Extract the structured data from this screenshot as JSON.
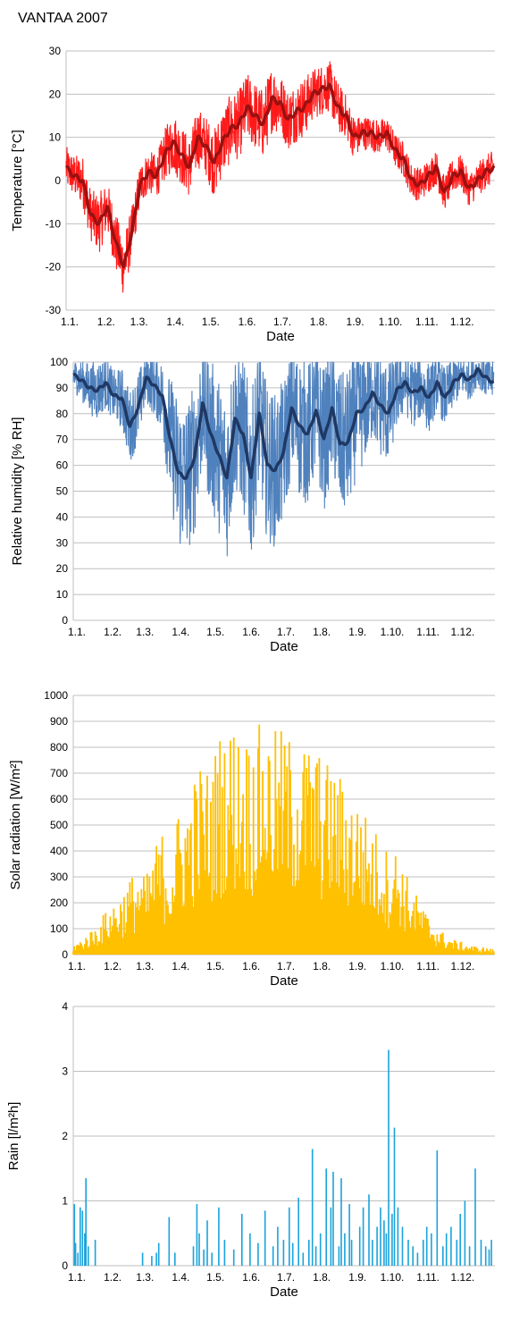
{
  "title": "VANTAA 2007",
  "colors": {
    "temperature_raw": "#ff1a1a",
    "temperature_mean": "#9b1010",
    "humidity_raw": "#4f81bd",
    "humidity_mean": "#1f3864",
    "solar": "#ffc000",
    "rain": "#1aa3dc",
    "grid": "#bfbfbf"
  },
  "chart_data": [
    {
      "type": "line",
      "title": "VANTAA 2007",
      "xlabel": "Date",
      "ylabel": "Temperature [°C]",
      "ylim": [
        -30,
        30
      ],
      "yticks": [
        -30,
        -20,
        -10,
        0,
        10,
        20,
        30
      ],
      "xticks": [
        "1.1.",
        "1.2.",
        "1.3.",
        "1.4.",
        "1.5.",
        "1.6.",
        "1.7.",
        "1.8.",
        "1.9.",
        "1.10.",
        "1.11.",
        "1.12."
      ],
      "grid": true,
      "series": [
        {
          "style": "hourly",
          "color": "#ff1a1a",
          "x": [
            "1.1.",
            "8.1.",
            "15.1.",
            "22.1.",
            "29.1.",
            "5.2.",
            "12.2.",
            "19.2.",
            "26.2.",
            "5.3.",
            "12.3.",
            "19.3.",
            "26.3.",
            "2.4.",
            "9.4.",
            "16.4.",
            "23.4.",
            "30.4.",
            "7.5.",
            "14.5.",
            "21.5.",
            "28.5.",
            "4.6.",
            "11.6.",
            "18.6.",
            "25.6.",
            "2.7.",
            "9.7.",
            "16.7.",
            "23.7.",
            "30.7.",
            "6.8.",
            "13.8.",
            "20.8.",
            "27.8.",
            "3.9.",
            "10.9.",
            "17.9.",
            "24.9.",
            "1.10.",
            "8.10.",
            "15.10.",
            "22.10.",
            "29.10.",
            "5.11.",
            "12.11.",
            "19.11.",
            "26.11.",
            "3.12.",
            "10.12.",
            "17.12.",
            "24.12.",
            "31.12."
          ],
          "y": [
            3,
            1,
            0,
            -8,
            -10,
            -6,
            -14,
            -20,
            -12,
            -1,
            2,
            1,
            6,
            9,
            6,
            3,
            10,
            8,
            4,
            9,
            12,
            13,
            17,
            15,
            13,
            19,
            18,
            14,
            16,
            17,
            20,
            21,
            22,
            17,
            15,
            10,
            11,
            11,
            10,
            11,
            7,
            5,
            0,
            -1,
            1,
            3,
            -3,
            1,
            2,
            -2,
            0,
            2,
            3
          ],
          "amplitude": [
            5,
            5,
            6,
            6,
            7,
            6,
            7,
            7,
            6,
            5,
            5,
            5,
            6,
            7,
            7,
            7,
            7,
            7,
            8,
            8,
            8,
            8,
            8,
            8,
            8,
            8,
            7,
            7,
            7,
            7,
            6,
            6,
            6,
            6,
            5,
            5,
            4,
            4,
            4,
            4,
            4,
            4,
            4,
            4,
            4,
            4,
            4,
            4,
            4,
            4,
            4,
            4,
            4
          ]
        },
        {
          "style": "mean",
          "color": "#9b1010",
          "x": [
            "1.1.",
            "8.1.",
            "15.1.",
            "22.1.",
            "29.1.",
            "5.2.",
            "12.2.",
            "19.2.",
            "26.2.",
            "5.3.",
            "12.3.",
            "19.3.",
            "26.3.",
            "2.4.",
            "9.4.",
            "16.4.",
            "23.4.",
            "30.4.",
            "7.5.",
            "14.5.",
            "21.5.",
            "28.5.",
            "4.6.",
            "11.6.",
            "18.6.",
            "25.6.",
            "2.7.",
            "9.7.",
            "16.7.",
            "23.7.",
            "30.7.",
            "6.8.",
            "13.8.",
            "20.8.",
            "27.8.",
            "3.9.",
            "10.9.",
            "17.9.",
            "24.9.",
            "1.10.",
            "8.10.",
            "15.10.",
            "22.10.",
            "29.10.",
            "5.11.",
            "12.11.",
            "19.11.",
            "26.11.",
            "3.12.",
            "10.12.",
            "17.12.",
            "24.12.",
            "31.12."
          ],
          "y": [
            3,
            1,
            0,
            -8,
            -10,
            -6,
            -14,
            -20,
            -12,
            -1,
            2,
            1,
            6,
            9,
            6,
            3,
            10,
            8,
            4,
            9,
            12,
            13,
            17,
            15,
            13,
            19,
            18,
            14,
            16,
            17,
            20,
            21,
            22,
            17,
            15,
            10,
            11,
            11,
            10,
            11,
            7,
            5,
            0,
            -1,
            1,
            3,
            -3,
            1,
            2,
            -2,
            0,
            2,
            3
          ]
        }
      ]
    },
    {
      "type": "line",
      "xlabel": "Date",
      "ylabel": "Relative humidity  [% RH]",
      "ylim": [
        0,
        100
      ],
      "yticks": [
        0,
        10,
        20,
        30,
        40,
        50,
        60,
        70,
        80,
        90,
        100
      ],
      "xticks": [
        "1.1.",
        "1.2.",
        "1.3.",
        "1.4.",
        "1.5.",
        "1.6.",
        "1.7.",
        "1.8.",
        "1.9.",
        "1.10.",
        "1.11.",
        "1.12."
      ],
      "grid": true,
      "series": [
        {
          "style": "hourly",
          "color": "#4f81bd",
          "x": [
            "1.1.",
            "8.1.",
            "15.1.",
            "22.1.",
            "29.1.",
            "5.2.",
            "12.2.",
            "19.2.",
            "26.2.",
            "5.3.",
            "12.3.",
            "19.3.",
            "26.3.",
            "2.4.",
            "9.4.",
            "16.4.",
            "23.4.",
            "30.4.",
            "7.5.",
            "14.5.",
            "21.5.",
            "28.5.",
            "4.6.",
            "11.6.",
            "18.6.",
            "25.6.",
            "2.7.",
            "9.7.",
            "16.7.",
            "23.7.",
            "30.7.",
            "6.8.",
            "13.8.",
            "20.8.",
            "27.8.",
            "3.9.",
            "10.9.",
            "17.9.",
            "24.9.",
            "1.10.",
            "8.10.",
            "15.10.",
            "22.10.",
            "29.10.",
            "5.11.",
            "12.11.",
            "19.11.",
            "26.11.",
            "3.12.",
            "10.12.",
            "17.12.",
            "24.12.",
            "31.12."
          ],
          "y": [
            95,
            93,
            90,
            89,
            92,
            87,
            86,
            75,
            82,
            94,
            91,
            87,
            70,
            57,
            55,
            63,
            84,
            72,
            64,
            55,
            78,
            72,
            55,
            80,
            60,
            58,
            65,
            82,
            75,
            72,
            81,
            70,
            82,
            68,
            69,
            80,
            82,
            88,
            83,
            80,
            89,
            92,
            88,
            90,
            86,
            92,
            86,
            92,
            95,
            93,
            97,
            94,
            92
          ],
          "amplitude": [
            6,
            8,
            10,
            12,
            10,
            10,
            12,
            14,
            14,
            10,
            12,
            14,
            25,
            30,
            30,
            30,
            25,
            30,
            30,
            32,
            28,
            30,
            32,
            28,
            30,
            30,
            28,
            25,
            28,
            28,
            25,
            28,
            25,
            28,
            28,
            25,
            22,
            18,
            20,
            20,
            15,
            12,
            14,
            12,
            14,
            10,
            12,
            10,
            8,
            8,
            6,
            8,
            8
          ]
        },
        {
          "style": "mean",
          "color": "#1f3864",
          "x": [
            "1.1.",
            "8.1.",
            "15.1.",
            "22.1.",
            "29.1.",
            "5.2.",
            "12.2.",
            "19.2.",
            "26.2.",
            "5.3.",
            "12.3.",
            "19.3.",
            "26.3.",
            "2.4.",
            "9.4.",
            "16.4.",
            "23.4.",
            "30.4.",
            "7.5.",
            "14.5.",
            "21.5.",
            "28.5.",
            "4.6.",
            "11.6.",
            "18.6.",
            "25.6.",
            "2.7.",
            "9.7.",
            "16.7.",
            "23.7.",
            "30.7.",
            "6.8.",
            "13.8.",
            "20.8.",
            "27.8.",
            "3.9.",
            "10.9.",
            "17.9.",
            "24.9.",
            "1.10.",
            "8.10.",
            "15.10.",
            "22.10.",
            "29.10.",
            "5.11.",
            "12.11.",
            "19.11.",
            "26.11.",
            "3.12.",
            "10.12.",
            "17.12.",
            "24.12.",
            "31.12."
          ],
          "y": [
            95,
            93,
            90,
            89,
            92,
            87,
            86,
            75,
            82,
            94,
            91,
            87,
            70,
            57,
            55,
            63,
            84,
            72,
            64,
            55,
            78,
            72,
            55,
            80,
            60,
            58,
            65,
            82,
            75,
            72,
            81,
            70,
            82,
            68,
            69,
            80,
            82,
            88,
            83,
            80,
            89,
            92,
            88,
            90,
            86,
            92,
            86,
            92,
            95,
            93,
            97,
            94,
            92
          ]
        }
      ]
    },
    {
      "type": "area",
      "xlabel": "Date",
      "ylabel": "Solar radiation [W/m²]",
      "ylim": [
        0,
        1000
      ],
      "yticks": [
        0,
        100,
        200,
        300,
        400,
        500,
        600,
        700,
        800,
        900,
        1000
      ],
      "xticks": [
        "1.1.",
        "1.2.",
        "1.3.",
        "1.4.",
        "1.5.",
        "1.6.",
        "1.7.",
        "1.8.",
        "1.9.",
        "1.10.",
        "1.11.",
        "1.12."
      ],
      "grid": true,
      "series": [
        {
          "style": "daily_peak",
          "color": "#ffc000",
          "x": [
            "1.1.",
            "8.1.",
            "15.1.",
            "22.1.",
            "29.1.",
            "5.2.",
            "12.2.",
            "19.2.",
            "26.2.",
            "5.3.",
            "12.3.",
            "19.3.",
            "26.3.",
            "2.4.",
            "9.4.",
            "16.4.",
            "23.4.",
            "30.4.",
            "7.5.",
            "14.5.",
            "21.5.",
            "28.5.",
            "4.6.",
            "11.6.",
            "18.6.",
            "25.6.",
            "2.7.",
            "9.7.",
            "16.7.",
            "23.7.",
            "30.7.",
            "6.8.",
            "13.8.",
            "20.8.",
            "27.8.",
            "3.9.",
            "10.9.",
            "17.9.",
            "24.9.",
            "1.10.",
            "8.10.",
            "15.10.",
            "22.10.",
            "29.10.",
            "5.11.",
            "12.11.",
            "19.11.",
            "26.11.",
            "3.12.",
            "10.12.",
            "17.12.",
            "24.12.",
            "31.12."
          ],
          "y": [
            40,
            60,
            90,
            120,
            170,
            210,
            240,
            300,
            330,
            300,
            420,
            480,
            380,
            560,
            600,
            700,
            750,
            720,
            860,
            880,
            900,
            850,
            860,
            890,
            880,
            870,
            880,
            840,
            820,
            830,
            810,
            760,
            730,
            700,
            640,
            620,
            560,
            500,
            460,
            400,
            420,
            330,
            260,
            200,
            150,
            110,
            80,
            60,
            50,
            40,
            30,
            30,
            20
          ]
        }
      ]
    },
    {
      "type": "bar",
      "xlabel": "Date",
      "ylabel": "Rain  [l/m²h]",
      "ylim": [
        0,
        4
      ],
      "yticks": [
        0,
        1,
        2,
        3,
        4
      ],
      "xticks": [
        "1.1.",
        "1.2.",
        "1.3.",
        "1.4.",
        "1.5.",
        "1.6.",
        "1.7.",
        "1.8.",
        "1.9.",
        "1.10.",
        "1.11.",
        "1.12."
      ],
      "grid": true,
      "series": [
        {
          "style": "hourly",
          "color": "#1aa3dc",
          "x": [
            "2.1.",
            "3.1.",
            "5.1.",
            "7.1.",
            "9.1.",
            "11.1.",
            "12.1.",
            "14.1.",
            "20.1.",
            "2.3.",
            "10.3.",
            "14.3.",
            "16.3.",
            "25.3.",
            "30.3.",
            "15.4.",
            "18.4.",
            "20.4.",
            "24.4.",
            "27.4.",
            "1.5.",
            "7.5.",
            "12.5.",
            "20.5.",
            "27.5.",
            "3.6.",
            "10.6.",
            "16.6.",
            "23.6.",
            "27.6.",
            "2.7.",
            "7.7.",
            "10.7.",
            "15.7.",
            "19.7.",
            "24.7.",
            "27.7.",
            "30.7.",
            "3.8.",
            "8.8.",
            "12.8.",
            "14.8.",
            "19.8.",
            "21.8.",
            "24.8.",
            "28.8.",
            "30.8.",
            "6.9.",
            "9.9.",
            "14.9.",
            "17.9.",
            "21.9.",
            "24.9.",
            "27.9.",
            "29.9.",
            "1.10.",
            "4.10.",
            "6.10.",
            "9.10.",
            "13.10.",
            "18.10.",
            "22.10.",
            "26.10.",
            "31.10.",
            "3.11.",
            "7.11.",
            "12.11.",
            "17.11.",
            "20.11.",
            "24.11.",
            "29.11.",
            "2.12.",
            "6.12.",
            "10.12.",
            "15.12.",
            "20.12.",
            "24.12.",
            "27.12.",
            "29.12."
          ],
          "y": [
            0.95,
            0.35,
            0.2,
            0.9,
            0.85,
            0.5,
            1.35,
            0.3,
            0.4,
            0.2,
            0.15,
            0.2,
            0.35,
            0.75,
            0.2,
            0.3,
            0.95,
            0.5,
            0.25,
            0.7,
            0.2,
            0.9,
            0.4,
            0.25,
            0.8,
            0.5,
            0.35,
            0.85,
            0.3,
            0.6,
            0.4,
            0.9,
            0.35,
            1.05,
            0.2,
            0.4,
            1.8,
            0.3,
            0.5,
            1.5,
            0.9,
            1.45,
            0.3,
            1.35,
            0.5,
            0.95,
            0.4,
            0.6,
            0.9,
            1.1,
            0.4,
            0.6,
            0.9,
            0.7,
            0.5,
            3.33,
            0.8,
            2.13,
            0.9,
            0.6,
            0.4,
            0.3,
            0.2,
            0.4,
            0.6,
            0.5,
            1.78,
            0.3,
            0.5,
            0.6,
            0.4,
            0.8,
            1.0,
            0.3,
            1.5,
            0.4,
            0.3,
            0.25,
            0.4
          ]
        }
      ]
    }
  ]
}
